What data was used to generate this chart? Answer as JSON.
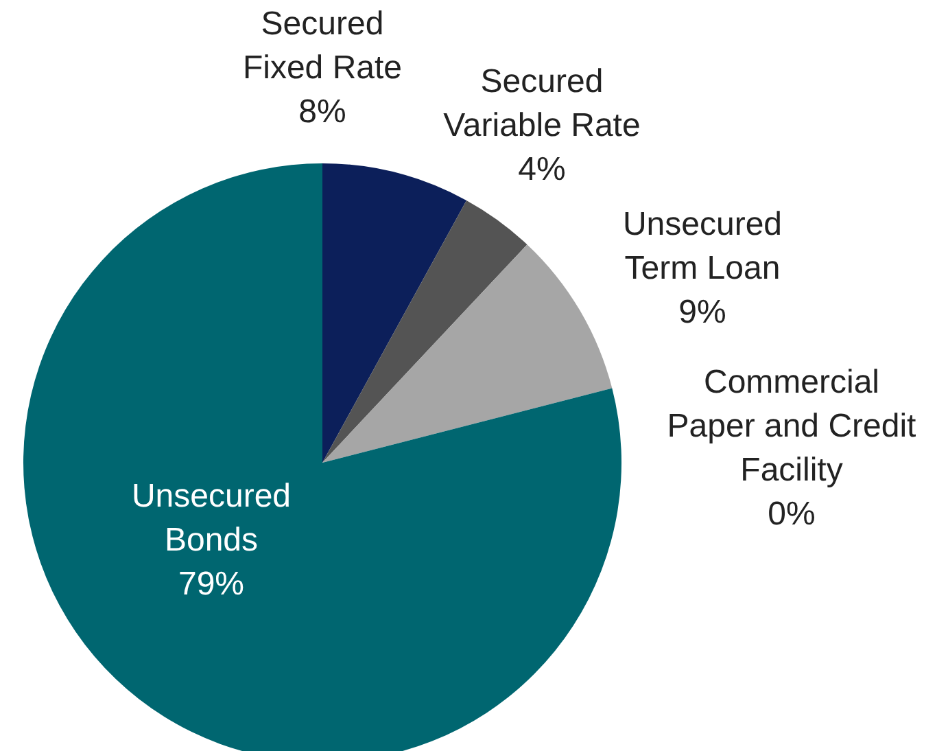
{
  "chart_data": {
    "type": "pie",
    "categories": [
      "Secured\nFixed Rate",
      "Secured\nVariable Rate",
      "Unsecured\nTerm Loan",
      "Commercial\nPaper and Credit\nFacility",
      "Unsecured\nBonds"
    ],
    "values": [
      8,
      4,
      9,
      0,
      79
    ],
    "colors": [
      "#0c1f5a",
      "#545454",
      "#a6a6a6",
      "#7f7f7f",
      "#006670"
    ],
    "value_labels": [
      "8%",
      "4%",
      "9%",
      "0%",
      "79%"
    ]
  }
}
